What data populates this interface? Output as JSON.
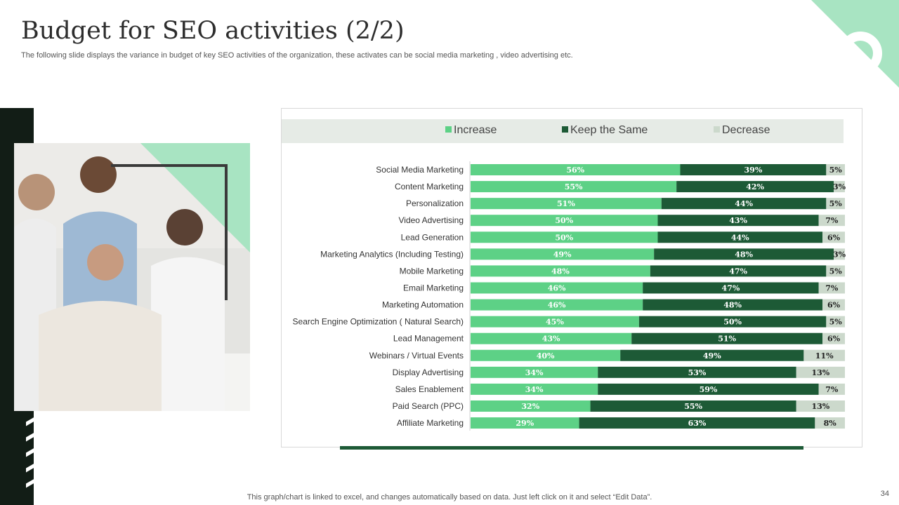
{
  "page": {
    "title": "Budget for SEO activities (2/2)",
    "subtitle": "The following slide displays the variance in budget of key SEO activities of the organization, these activates can be social media marketing , video advertising etc.",
    "footnote": "This graph/chart is linked to excel, and changes automatically based on data. Just left click on it and select “Edit Data”.",
    "page_number": "34"
  },
  "photo": {
    "icon": "team-photo-icon"
  },
  "colors": {
    "increase": "#5dd186",
    "keep": "#1d5a36",
    "decrease": "#ccd9cc",
    "title": "#2d2d2d",
    "accent": "#a8e4c2",
    "dark": "#121d16"
  },
  "chart_data": {
    "type": "bar",
    "orientation": "horizontal",
    "stacked": true,
    "legend_position": "top",
    "categories": [
      "Social  Media Marketing",
      "Content Marketing",
      "Personalization",
      "Video Advertising",
      "Lead Generation",
      "Marketing Analytics (Including Testing)",
      "Mobile Marketing",
      "Email Marketing",
      "Marketing Automation",
      "Search Engine Optimization ( Natural Search)",
      "Lead Management",
      "Webinars / Virtual Events",
      "Display Advertising",
      "Sales Enablement",
      "Paid Search (PPC)",
      "Affiliate Marketing"
    ],
    "series": [
      {
        "name": "Increase",
        "values": [
          56,
          55,
          51,
          50,
          50,
          49,
          48,
          46,
          46,
          45,
          43,
          40,
          34,
          34,
          32,
          29
        ]
      },
      {
        "name": "Keep the Same",
        "values": [
          39,
          42,
          44,
          43,
          44,
          48,
          47,
          47,
          48,
          50,
          51,
          49,
          53,
          59,
          55,
          63
        ]
      },
      {
        "name": "Decrease",
        "values": [
          5,
          3,
          5,
          7,
          6,
          3,
          5,
          7,
          6,
          5,
          6,
          11,
          13,
          7,
          13,
          8
        ]
      }
    ],
    "value_suffix": "%",
    "xlim": [
      0,
      100
    ],
    "grid": false
  }
}
